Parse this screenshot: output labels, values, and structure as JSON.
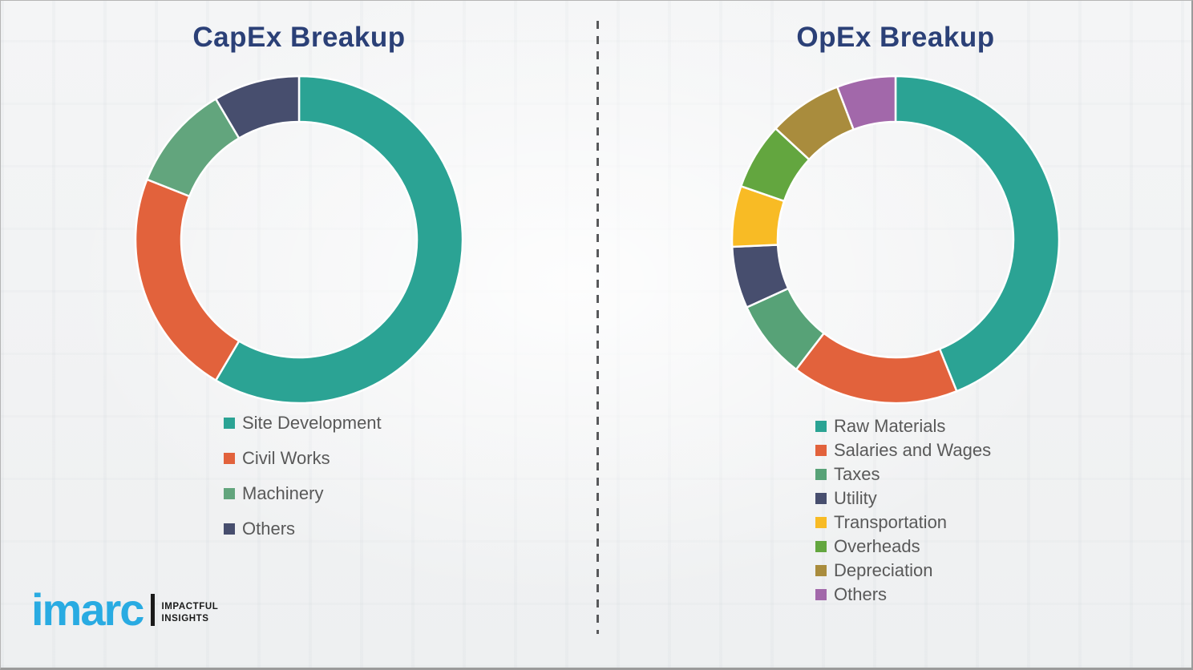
{
  "page": {
    "background_color": "#f2f3f4",
    "frame_border_color": "#9b9b9b",
    "divider_color": "#58595b"
  },
  "chart_data": [
    {
      "type": "pie",
      "subtype": "donut",
      "title": "CapEx Breakup",
      "title_color": "#2b4077",
      "categories": [
        "Site Development",
        "Civil Works",
        "Machinery",
        "Others"
      ],
      "values": [
        58.5,
        22.5,
        10.5,
        8.5
      ],
      "values_note": "percent, estimated from arc angles (no numeric labels shown)",
      "colors": [
        "#2ba394",
        "#e2623c",
        "#62a57d",
        "#474e6e"
      ],
      "start_angle_deg": 0,
      "direction": "clockwise",
      "ring_inner_ratio": 0.72,
      "legend_position": "below-left",
      "legend_text_color": "#595959",
      "grid": false
    },
    {
      "type": "pie",
      "subtype": "donut",
      "title": "OpEx Breakup",
      "title_color": "#2b4077",
      "categories": [
        "Raw Materials",
        "Salaries and Wages",
        "Taxes",
        "Utility",
        "Transportation",
        "Overheads",
        "Depreciation",
        "Others"
      ],
      "values": [
        43.9,
        16.5,
        7.8,
        6.1,
        6.0,
        6.6,
        7.3,
        5.8
      ],
      "values_note": "percent, estimated from arc angles (no numeric labels shown)",
      "colors": [
        "#2ba394",
        "#e2623c",
        "#57a277",
        "#474e6e",
        "#f8bb25",
        "#63a63f",
        "#a98c3d",
        "#a268aa"
      ],
      "start_angle_deg": 0,
      "direction": "clockwise",
      "ring_inner_ratio": 0.72,
      "legend_position": "below-left",
      "legend_text_color": "#595959",
      "grid": false
    }
  ],
  "branding": {
    "logo_text": "imarc",
    "logo_color": "#29abe2",
    "tagline_lines": [
      "IMPACTFUL",
      "INSIGHTS"
    ],
    "tagline_color": "#1a1a1a"
  }
}
